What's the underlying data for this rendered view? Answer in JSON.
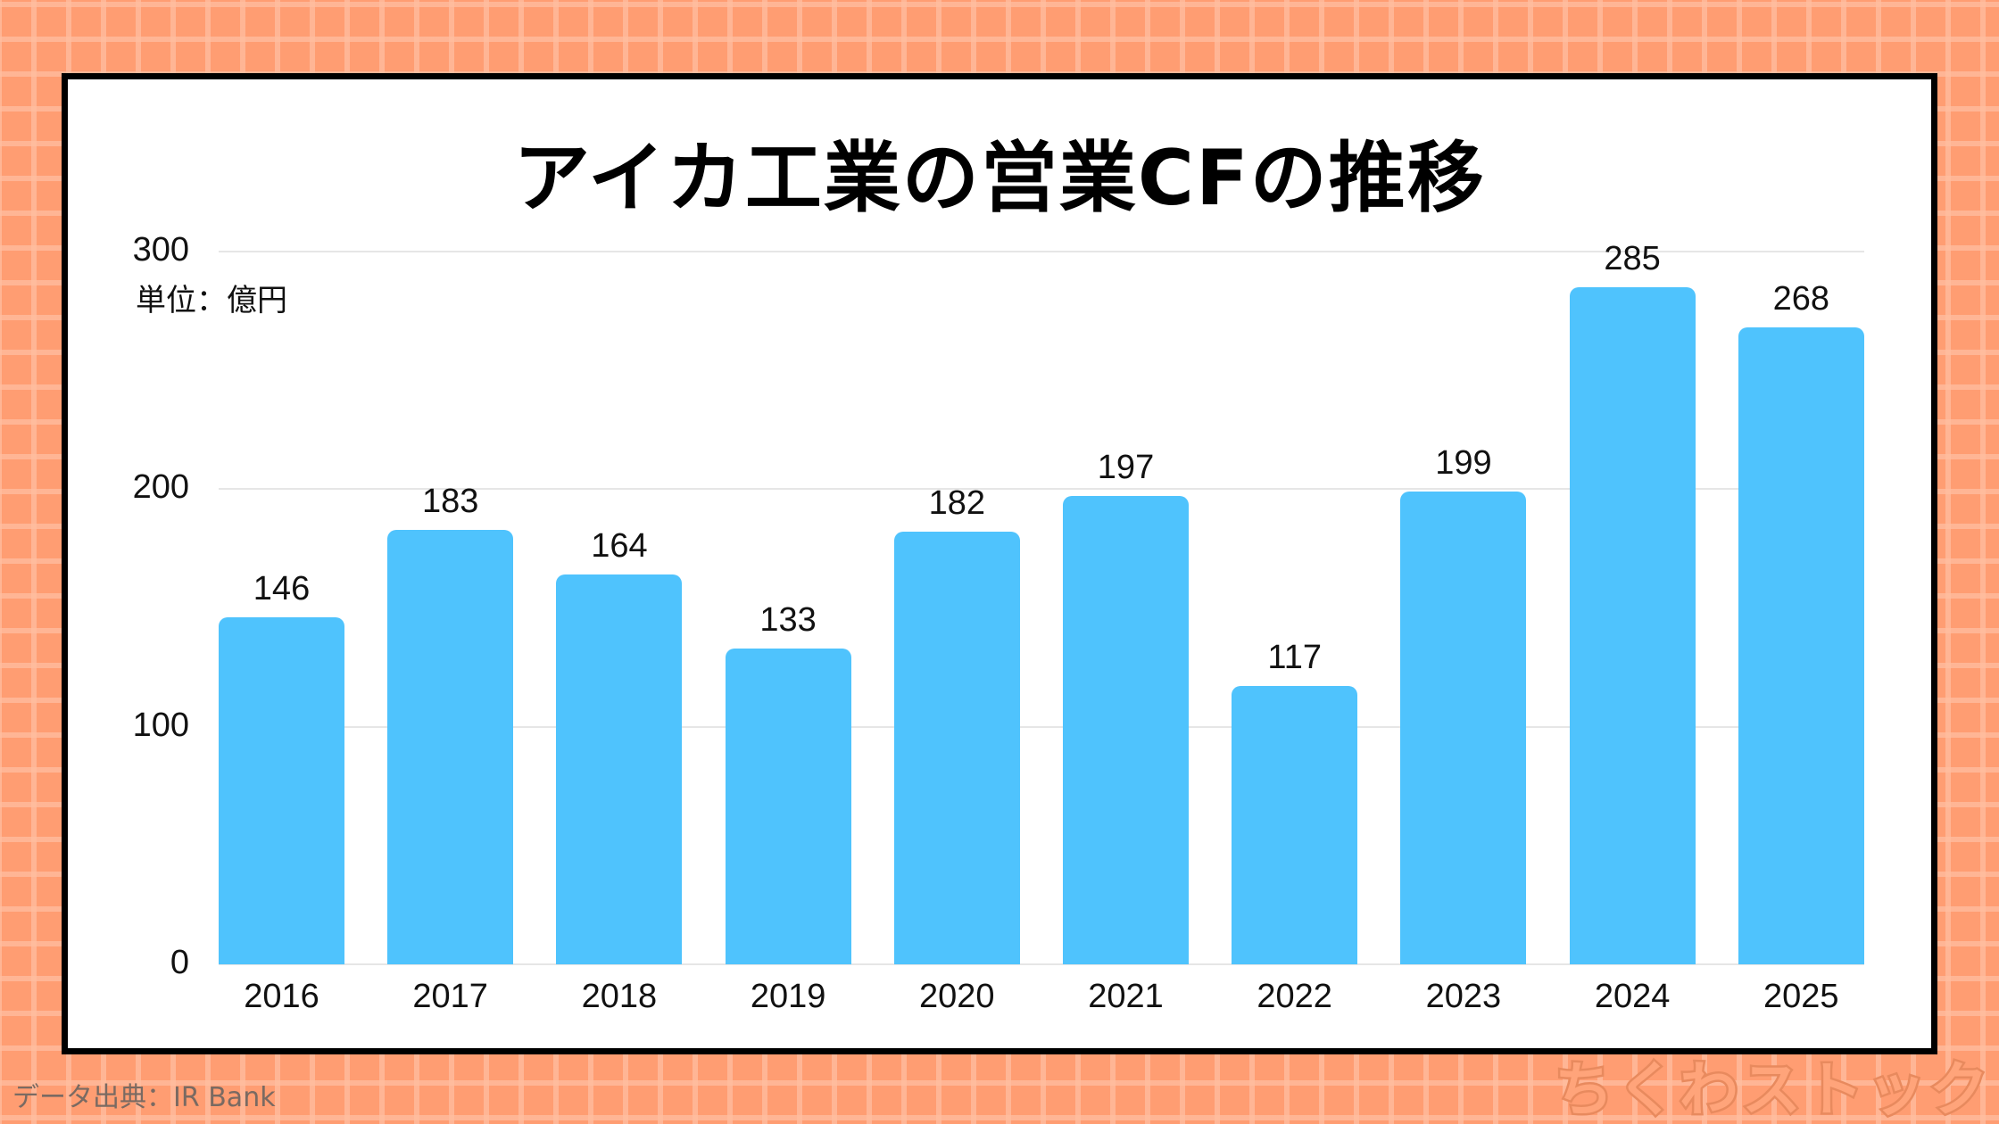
{
  "title": "アイカ工業の営業CFの推移",
  "unit_label": "単位：億円",
  "source": "データ出典：IR Bank",
  "brand": "ちくわストック",
  "colors": {
    "bar": "#4fc3fd",
    "background": "#ff9d72",
    "frame_border": "#000000"
  },
  "y_ticks": [
    "0",
    "100",
    "200",
    "300"
  ],
  "chart_data": {
    "type": "bar",
    "title": "アイカ工業の営業CFの推移",
    "xlabel": "",
    "ylabel": "単位：億円",
    "categories": [
      "2016",
      "2017",
      "2018",
      "2019",
      "2020",
      "2021",
      "2022",
      "2023",
      "2024",
      "2025"
    ],
    "values": [
      146,
      183,
      164,
      133,
      182,
      197,
      117,
      199,
      285,
      268
    ],
    "ylim": [
      0,
      300
    ],
    "yticks": [
      0,
      100,
      200,
      300
    ],
    "grid": true,
    "legend": "none",
    "data_labels": true
  }
}
